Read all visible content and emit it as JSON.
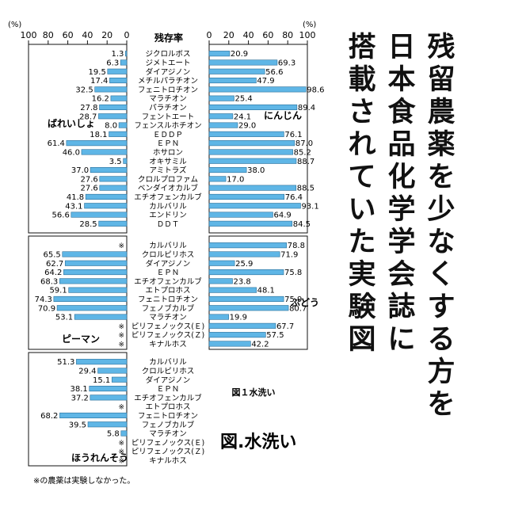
{
  "figure": {
    "axis": {
      "left_unit": "(%)",
      "right_unit": "(%)",
      "left_ticks": [
        100,
        80,
        60,
        40,
        20,
        0
      ],
      "right_ticks": [
        0,
        20,
        40,
        60,
        80,
        100
      ],
      "range": [
        0,
        100
      ]
    },
    "column_header": "残存率",
    "caption_small": "図１水洗い",
    "caption_large": "図.水洗い",
    "footnote": "※の農薬は実験しなかった。",
    "not_tested_mark": "※",
    "bar_color": "#5fb6e6"
  },
  "side_title_lines": [
    "残留農薬を少なくする方を",
    "日本食品化学学会誌に",
    "搭載されていた実験図"
  ],
  "chart_data": [
    {
      "type": "bar",
      "orientation": "horizontal",
      "crop": "ばれいしょ",
      "side": "left",
      "categories": [
        "ジクロルボス",
        "ジメトエート",
        "ダイアジノン",
        "メチルパラチオン",
        "フェニトロチオン",
        "マラチオン",
        "パラチオン",
        "フェントエート",
        "フェンスルホチオン",
        "ＥＤＤＰ",
        "ＥＰＮ",
        "ホサロン",
        "オキサミル",
        "アミトラズ",
        "クロルプロファム",
        "ベンダイオカルブ",
        "エチオフェンカルブ",
        "カルバリル",
        "エンドリン",
        "ＤＤＴ"
      ],
      "values": [
        1.3,
        6.3,
        19.5,
        17.4,
        32.5,
        16.2,
        27.8,
        28.7,
        8.0,
        18.1,
        61.4,
        46.0,
        3.5,
        37.0,
        27.6,
        27.6,
        41.8,
        43.1,
        56.6,
        28.5
      ],
      "unit": "%",
      "xlim": [
        0,
        100
      ]
    },
    {
      "type": "bar",
      "orientation": "horizontal",
      "crop": "にんじん",
      "side": "right",
      "categories": [
        "ジクロルボス",
        "ジメトエート",
        "ダイアジノン",
        "メチルパラチオン",
        "フェニトロチオン",
        "マラチオン",
        "パラチオン",
        "フェントエート",
        "フェンスルホチオン",
        "ＥＤＤＰ",
        "ＥＰＮ",
        "ホサロン",
        "オキサミル",
        "アミトラズ",
        "クロルプロファム",
        "ベンダイオカルブ",
        "エチオフェンカルブ",
        "カルバリル",
        "エンドリン",
        "ＤＤＴ"
      ],
      "values": [
        20.9,
        69.3,
        56.6,
        47.9,
        98.6,
        25.4,
        89.4,
        24.1,
        29.0,
        76.1,
        87.0,
        85.2,
        88.7,
        38.0,
        17.0,
        88.5,
        76.4,
        93.1,
        64.9,
        84.5
      ],
      "unit": "%",
      "xlim": [
        0,
        100
      ]
    },
    {
      "type": "bar",
      "orientation": "horizontal",
      "crop": "ピーマン",
      "side": "left",
      "categories": [
        "カルバリル",
        "クロルピリホス",
        "ダイアジノン",
        "ＥＰＮ",
        "エチオフェンカルブ",
        "エトプロホス",
        "フェニトロチオン",
        "フェノブカルブ",
        "マラチオン",
        "ピリフェノックス(Ｅ)",
        "ピリフェノックス(Ｚ)",
        "キナルホス"
      ],
      "values": [
        null,
        65.5,
        62.7,
        64.2,
        68.3,
        59.1,
        74.3,
        70.9,
        53.1,
        null,
        null,
        null
      ],
      "unit": "%",
      "xlim": [
        0,
        100
      ]
    },
    {
      "type": "bar",
      "orientation": "horizontal",
      "crop": "ぶどう",
      "side": "right",
      "categories": [
        "カルバリル",
        "クロルピリホス",
        "ダイアジノン",
        "ＥＰＮ",
        "エチオフェンカルブ",
        "エトプロホス",
        "フェニトロチオン",
        "フェノブカルブ",
        "マラチオン",
        "ピリフェノックス(Ｅ)",
        "ピリフェノックス(Ｚ)",
        "キナルホス"
      ],
      "values": [
        78.8,
        71.9,
        25.9,
        75.8,
        23.8,
        48.1,
        75.9,
        80.7,
        19.9,
        67.7,
        57.5,
        42.2
      ],
      "unit": "%",
      "xlim": [
        0,
        100
      ]
    },
    {
      "type": "bar",
      "orientation": "horizontal",
      "crop": "ほうれんそう",
      "side": "left",
      "categories": [
        "カルバリル",
        "クロルピリホス",
        "ダイアジノン",
        "ＥＰＮ",
        "エチオフェンカルブ",
        "エトプロホス",
        "フェニトロチオン",
        "フェノブカルブ",
        "マラチオン",
        "ピリフェノックス(Ｅ)",
        "ピリフェノックス(Ｚ)",
        "キナルホス"
      ],
      "values": [
        51.3,
        29.4,
        15.1,
        38.1,
        37.2,
        null,
        68.2,
        39.5,
        5.8,
        null,
        null,
        null
      ],
      "unit": "%",
      "xlim": [
        0,
        100
      ]
    }
  ]
}
